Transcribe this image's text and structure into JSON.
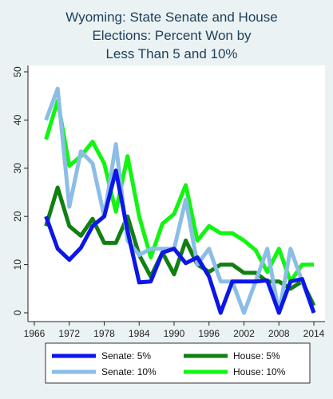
{
  "chart_data": {
    "type": "line",
    "title_lines": [
      "Wyoming: State Senate and House",
      "Elections: Percent Won by",
      "Less Than 5 and 10%"
    ],
    "xlabel": "",
    "ylabel": "",
    "xlim": [
      1966,
      2014
    ],
    "ylim": [
      0,
      50
    ],
    "x_ticks": [
      1966,
      1972,
      1978,
      1984,
      1990,
      1996,
      2002,
      2008,
      2014
    ],
    "y_ticks": [
      0,
      10,
      20,
      30,
      40,
      50
    ],
    "grid": false,
    "legend_position": "bottom",
    "series": [
      {
        "name": "Senate: 5%",
        "color": "#0d16e8",
        "x": [
          1968,
          1970,
          1972,
          1974,
          1976,
          1978,
          1980,
          1982,
          1984,
          1986,
          1988,
          1990,
          1992,
          1994,
          1996,
          1998,
          2000,
          2002,
          2004,
          2006,
          2008,
          2010,
          2012,
          2014
        ],
        "y": [
          20,
          13.3,
          11,
          13.5,
          18,
          20,
          29.5,
          17,
          6.3,
          6.5,
          12.5,
          13.3,
          10.3,
          11.5,
          7.5,
          0,
          6.5,
          6.5,
          6.5,
          6.7,
          0,
          6.5,
          7,
          0
        ]
      },
      {
        "name": "House: 5%",
        "color": "#127f12",
        "x": [
          1968,
          1970,
          1972,
          1974,
          1976,
          1978,
          1980,
          1982,
          1984,
          1986,
          1988,
          1990,
          1992,
          1994,
          1996,
          1998,
          2000,
          2002,
          2004,
          2006,
          2008,
          2010,
          2012,
          2014
        ],
        "y": [
          18,
          26,
          18,
          16,
          19.5,
          14.5,
          14.5,
          20,
          12,
          7.5,
          12.5,
          8,
          15,
          10,
          8.5,
          10,
          10,
          8.3,
          8.3,
          6.5,
          6.5,
          5,
          6.5,
          1.5
        ]
      },
      {
        "name": "Senate: 10%",
        "color": "#8bbde6",
        "x": [
          1968,
          1970,
          1972,
          1974,
          1976,
          1978,
          1980,
          1982,
          1984,
          1986,
          1988,
          1990,
          1992,
          1994,
          1996,
          1998,
          2000,
          2002,
          2004,
          2006,
          2008,
          2010,
          2012,
          2014
        ],
        "y": [
          40,
          46.5,
          22,
          33.5,
          31,
          20,
          35,
          15,
          12,
          13.3,
          13.3,
          13.3,
          23.5,
          10,
          13.3,
          6.5,
          6.5,
          0,
          6.5,
          13.3,
          0,
          13.3,
          6.5,
          0
        ]
      },
      {
        "name": "House: 10%",
        "color": "#11f511",
        "x": [
          1968,
          1970,
          1972,
          1974,
          1976,
          1978,
          1980,
          1982,
          1984,
          1986,
          1988,
          1990,
          1992,
          1994,
          1996,
          1998,
          2000,
          2002,
          2004,
          2006,
          2008,
          2010,
          2012,
          2014
        ],
        "y": [
          36,
          44,
          30.5,
          32.5,
          35.5,
          31,
          21,
          32.5,
          20,
          11.5,
          18.5,
          20.5,
          26.5,
          15,
          18,
          16.5,
          16.5,
          15,
          13,
          8.5,
          13.3,
          6.5,
          10,
          10
        ]
      }
    ],
    "legend_order": [
      "Senate: 5%",
      "House: 5%",
      "Senate: 10%",
      "House: 10%"
    ]
  }
}
